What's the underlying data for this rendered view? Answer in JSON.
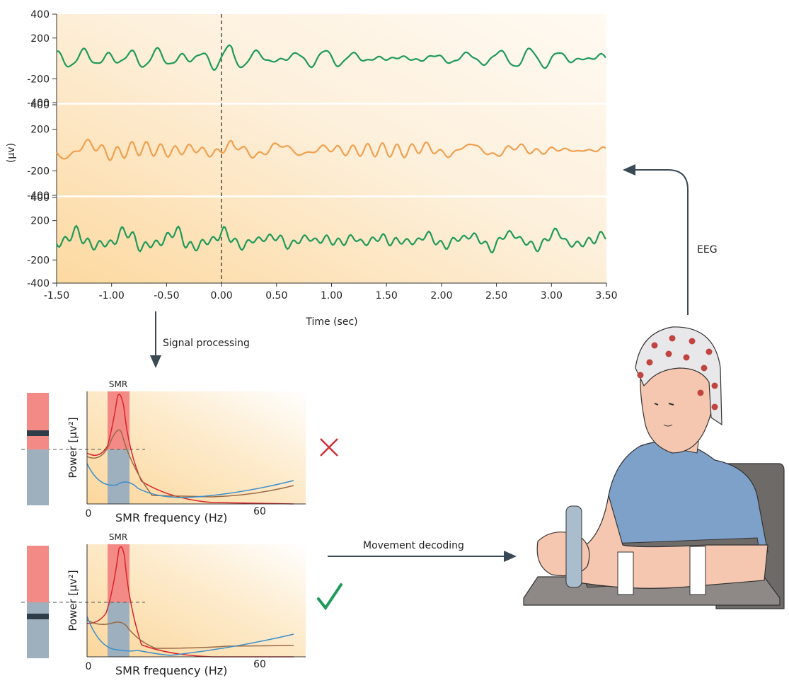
{
  "eeg_panel": {
    "y_axis_label": "(µv)",
    "channels": [
      {
        "yticks": [
          "400",
          "200",
          "-200",
          "-400"
        ]
      },
      {
        "yticks": [
          "400",
          "200",
          "-200",
          "-400"
        ]
      },
      {
        "yticks": [
          "400",
          "200",
          "-200",
          "-400"
        ]
      }
    ],
    "xticks": [
      "-1.50",
      "-1.00",
      "-0.50",
      "0.00",
      "0.50",
      "1.00",
      "1.50",
      "2.00",
      "2.50",
      "3.00",
      "3.50"
    ],
    "x_axis_label": "Time (sec)"
  },
  "arrows": {
    "signal_processing": "Signal processing",
    "eeg": "EEG",
    "movement_decoding": "Movement decoding"
  },
  "spectra": [
    {
      "band_label": "SMR",
      "y_axis_label": "Power [µv²]",
      "x_axis_label": "SMR frequency (Hz)",
      "xticks": [
        "0",
        "60"
      ]
    },
    {
      "band_label": "SMR",
      "y_axis_label": "Power [µv²]",
      "x_axis_label": "SMR frequency (Hz)",
      "xticks": [
        "0",
        "60"
      ]
    }
  ]
}
